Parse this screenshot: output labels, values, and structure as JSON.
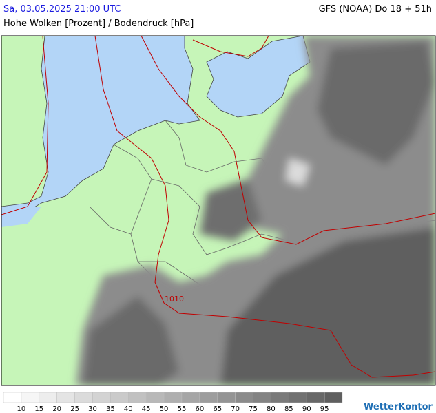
{
  "header": {
    "datetime": "Sa, 03.05.2025 21:00 UTC",
    "model": "GFS (NOAA) Do 18 + 51h",
    "title": "Hohe Wolken [Prozent] / Bodendruck [hPa]"
  },
  "map": {
    "isobar_labels": [
      "1010"
    ]
  },
  "legend": {
    "ticks": [
      10,
      15,
      20,
      25,
      30,
      35,
      40,
      45,
      50,
      55,
      60,
      65,
      70,
      75,
      80,
      85,
      90,
      95
    ]
  },
  "logo": "WetterKontor"
}
